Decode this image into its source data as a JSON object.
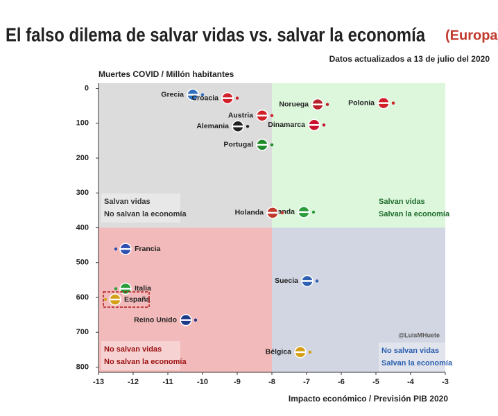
{
  "chart_data": {
    "type": "scatter",
    "title": "El falso dilema de salvar vidas vs. salvar la economía",
    "region": "(Europa)",
    "subtitle": "Datos actualizados a 13 de julio del 2020",
    "y_label": "Muertes COVID / Millón habitantes",
    "x_label": "Impacto económico / Previsión PIB 2020",
    "credit": "@LuisMHuete",
    "labels": [
      "Grecia",
      "Croacia",
      "Noruega",
      "Polonia",
      "Austria",
      "Alemania",
      "Dinamarca",
      "Portugal",
      "Irlanda",
      "Holanda",
      "Francia",
      "Italia",
      "España",
      "Reino Unido",
      "Suecia",
      "Bélgica"
    ],
    "x": [
      -10.0,
      -9.0,
      -6.4,
      -4.5,
      -8.0,
      -8.7,
      -6.5,
      -8.0,
      -6.8,
      -7.7,
      -12.5,
      -12.5,
      -12.8,
      -10.2,
      -6.7,
      -6.9
    ],
    "y": [
      18,
      28,
      46,
      42,
      78,
      109,
      105,
      162,
      355,
      357,
      461,
      575,
      606,
      665,
      553,
      757
    ],
    "colors": [
      "#2f6fc0",
      "#d0202a",
      "#b8202a",
      "#d0202a",
      "#d0202a",
      "#222222",
      "#c8102e",
      "#1f8a2a",
      "#2a9d3a",
      "#c0392b",
      "#2f4fb0",
      "#2a9d3a",
      "#d4a017",
      "#1f3a8a",
      "#2f5fb0",
      "#d4a017"
    ],
    "highlight": 12,
    "xlim": [
      -13,
      -3
    ],
    "ylim": [
      -15,
      815
    ],
    "y_inverted": true,
    "xticks": [
      -13,
      -12,
      -11,
      -10,
      -9,
      -8,
      -7,
      -6,
      -5,
      -4,
      -3
    ],
    "yticks": [
      0,
      100,
      200,
      300,
      400,
      500,
      600,
      700,
      800
    ],
    "x_split": -8,
    "y_split": 400,
    "quadrants": [
      {
        "lines": [
          "Salvan vidas",
          "No salvan la economía"
        ],
        "color": "#dcdcdc",
        "text_color": "#333333"
      },
      {
        "lines": [
          "Salvan vidas",
          "Salvan la economía"
        ],
        "color": "#dcf7dc",
        "text_color": "#1e6b2a"
      },
      {
        "lines": [
          "No salvan vidas",
          "No salvan la economía"
        ],
        "color": "#f2baba",
        "text_color": "#9b1111"
      },
      {
        "lines": [
          "No salvan vidas",
          "Salvan la economía"
        ],
        "color": "#d2d6e2",
        "text_color": "#2c5fb0"
      }
    ]
  }
}
